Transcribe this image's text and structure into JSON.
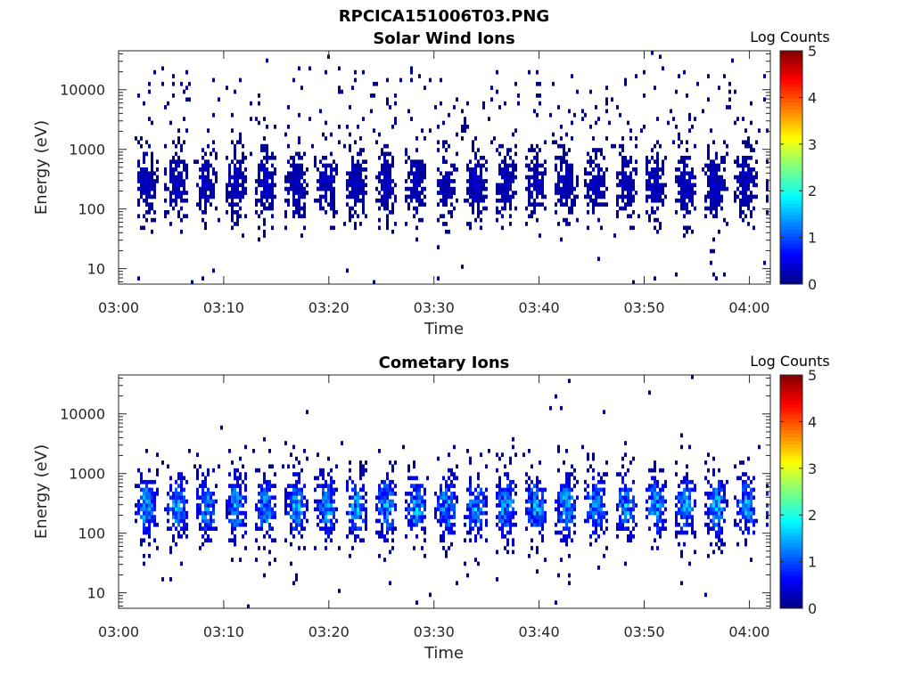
{
  "figure_title": "RPCICA151006T03.PNG",
  "chart_data": [
    {
      "type": "heatmap",
      "title": "Solar Wind Ions",
      "xlabel": "Time",
      "ylabel": "Energy (eV)",
      "y_scale": "log",
      "ylim": [
        5.5,
        45000
      ],
      "xlim": [
        "03:00",
        "04:02"
      ],
      "x_ticks": [
        "03:00",
        "03:10",
        "03:20",
        "03:30",
        "03:40",
        "03:50",
        "04:00"
      ],
      "y_ticks": [
        {
          "value": 10,
          "label": "10"
        },
        {
          "value": 100,
          "label": "100"
        },
        {
          "value": 1000,
          "label": "1000"
        },
        {
          "value": 10000,
          "label": "10000"
        }
      ],
      "colorbar": {
        "label": "Log Counts",
        "range": [
          0,
          5
        ],
        "ticks": [
          "0",
          "1",
          "2",
          "3",
          "4",
          "5"
        ],
        "colormap": "jet"
      },
      "scan_period_min": 2.85,
      "first_scan_start_min": 1.6,
      "peak_energy_eV": 260,
      "peak_log_counts": 0.45,
      "sparse_high_energy_counts": true
    },
    {
      "type": "heatmap",
      "title": "Cometary Ions",
      "xlabel": "Time",
      "ylabel": "Energy (eV)",
      "y_scale": "log",
      "ylim": [
        5.5,
        45000
      ],
      "xlim": [
        "03:00",
        "04:02"
      ],
      "x_ticks": [
        "03:00",
        "03:10",
        "03:20",
        "03:30",
        "03:40",
        "03:50",
        "04:00"
      ],
      "y_ticks": [
        {
          "value": 10,
          "label": "10"
        },
        {
          "value": 100,
          "label": "100"
        },
        {
          "value": 1000,
          "label": "1000"
        },
        {
          "value": 10000,
          "label": "10000"
        }
      ],
      "colorbar": {
        "label": "Log Counts",
        "range": [
          0,
          5
        ],
        "ticks": [
          "0",
          "1",
          "2",
          "3",
          "4",
          "5"
        ],
        "colormap": "jet"
      },
      "scan_period_min": 2.85,
      "first_scan_start_min": 1.6,
      "peak_energy_eV": 280,
      "peak_log_counts": 1.9,
      "sparse_high_energy_counts": false
    }
  ]
}
